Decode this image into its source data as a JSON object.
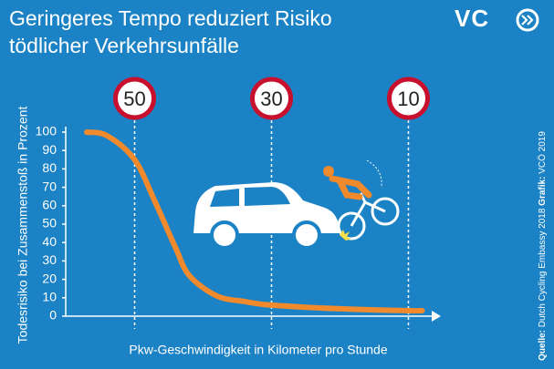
{
  "chart_data": {
    "type": "line",
    "title": [
      "Geringeres Tempo reduziert Risiko",
      "tödlicher Verkehrsunfälle"
    ],
    "logo": "VC",
    "y_label": "Todesrisiko bei Zusammenstoß in Prozent",
    "x_label": "Pkw-Geschwindigkeit in Kilometer pro Stunde",
    "source": {
      "label": "Quelle:",
      "text": "Dutch Cycling Embassy 2018"
    },
    "credit": {
      "label": "Grafik:",
      "text": "VCÖ 2019"
    },
    "x": [
      57,
      54,
      50,
      47,
      44,
      42,
      38,
      34,
      30,
      20,
      10,
      8
    ],
    "series": [
      {
        "name": "Todesrisiko",
        "color": "#f08a2c",
        "values": [
          100,
          98,
          85,
          62,
          37,
          22,
          11,
          8,
          6,
          4,
          3,
          3
        ]
      }
    ],
    "xlim": [
      61,
      5
    ],
    "xticks": [
      50,
      30,
      10
    ],
    "ylim": [
      0,
      100
    ],
    "yticks": [
      0,
      10,
      20,
      30,
      40,
      50,
      60,
      70,
      80,
      90,
      100
    ]
  }
}
